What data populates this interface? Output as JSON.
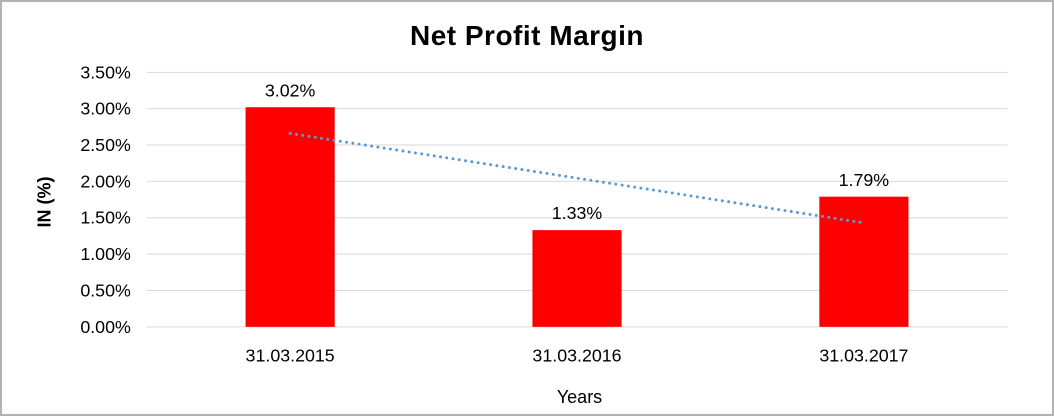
{
  "chart_data": {
    "type": "bar",
    "title": "Net Profit Margin",
    "xlabel": "Years",
    "ylabel": "IN (%)",
    "categories": [
      "31.03.2015",
      "31.03.2016",
      "31.03.2017"
    ],
    "values": [
      3.02,
      1.33,
      1.79
    ],
    "value_labels": [
      "3.02%",
      "1.33%",
      "1.79%"
    ],
    "ylim": [
      0,
      3.5
    ],
    "ytick_step": 0.5,
    "ytick_labels": [
      "0.00%",
      "0.50%",
      "1.00%",
      "1.50%",
      "2.00%",
      "2.50%",
      "3.00%",
      "3.50%"
    ],
    "grid": "horizontal",
    "legend": "none",
    "bar_color": "#FF0000",
    "gridline_color": "#D9D9D9",
    "trendline": {
      "type": "linear",
      "style": "dotted",
      "color": "#5B9BD5",
      "start_value": 2.66,
      "end_value": 1.43
    }
  }
}
